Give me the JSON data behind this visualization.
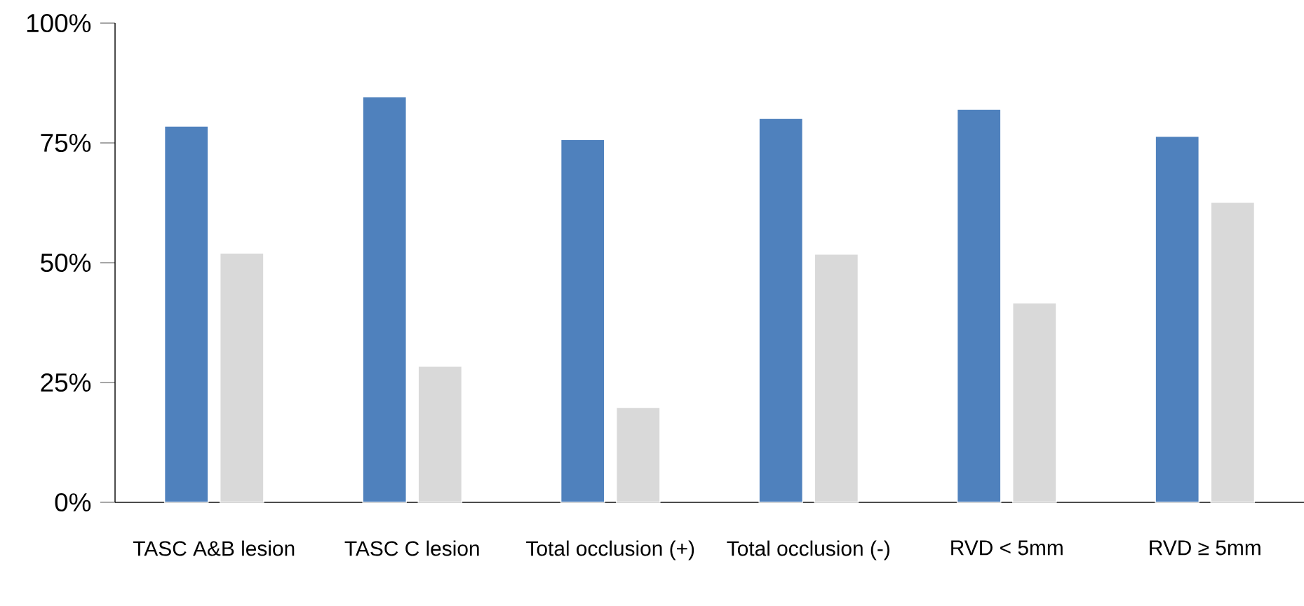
{
  "chart_data": {
    "type": "bar",
    "categories": [
      "TASC A&B lesion",
      "TASC C lesion",
      "Total occlusion (+)",
      "Total occlusion (-)",
      "RVD < 5mm",
      "RVD ≥ 5mm"
    ],
    "series": [
      {
        "color": "#4f81bd",
        "values": [
          78.5,
          84.6,
          75.7,
          80.1,
          82.0,
          76.4
        ]
      },
      {
        "color": "#d9d9d9",
        "values": [
          52.0,
          28.4,
          19.8,
          51.8,
          41.6,
          62.6
        ]
      }
    ],
    "ylim": [
      0,
      100
    ],
    "yticks": [
      {
        "value": 0,
        "label": "0%"
      },
      {
        "value": 25,
        "label": "25%"
      },
      {
        "value": 50,
        "label": "50%"
      },
      {
        "value": 75,
        "label": "75%"
      },
      {
        "value": 100,
        "label": "100%"
      }
    ],
    "grid": false,
    "legend": false
  }
}
